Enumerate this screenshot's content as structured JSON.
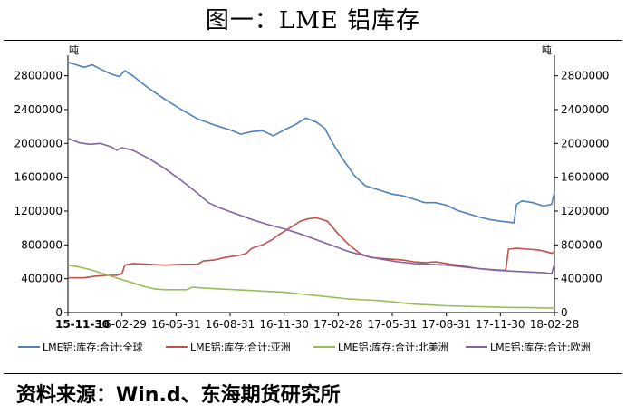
{
  "title": "图一：LME 铝库存",
  "source": "资料来源：Win.d、东海期货研究所",
  "chart_data": {
    "type": "line",
    "unit_left": "吨",
    "unit_right": "吨",
    "ylim": [
      0,
      3000000
    ],
    "y_ticks": [
      0,
      400000,
      800000,
      1200000,
      1600000,
      2000000,
      2400000,
      2800000
    ],
    "x_ticks": [
      "15-11-30",
      "16-02-29",
      "16-05-31",
      "16-08-31",
      "16-11-30",
      "17-02-28",
      "17-05-31",
      "17-08-31",
      "17-11-30",
      "18-02-28"
    ],
    "grid": false,
    "legend_position": "bottom",
    "series": [
      {
        "name": "LME铝:库存:合计:全球",
        "color": "#4f81bd",
        "points": [
          [
            0,
            2960000
          ],
          [
            0.15,
            2930000
          ],
          [
            0.3,
            2900000
          ],
          [
            0.45,
            2930000
          ],
          [
            0.6,
            2880000
          ],
          [
            0.8,
            2820000
          ],
          [
            0.95,
            2790000
          ],
          [
            1.05,
            2860000
          ],
          [
            1.2,
            2800000
          ],
          [
            1.5,
            2650000
          ],
          [
            1.8,
            2520000
          ],
          [
            2.1,
            2400000
          ],
          [
            2.4,
            2290000
          ],
          [
            2.7,
            2220000
          ],
          [
            3.0,
            2160000
          ],
          [
            3.2,
            2110000
          ],
          [
            3.4,
            2140000
          ],
          [
            3.6,
            2150000
          ],
          [
            3.8,
            2090000
          ],
          [
            4.0,
            2160000
          ],
          [
            4.2,
            2220000
          ],
          [
            4.4,
            2300000
          ],
          [
            4.6,
            2250000
          ],
          [
            4.75,
            2180000
          ],
          [
            4.9,
            2000000
          ],
          [
            5.1,
            1800000
          ],
          [
            5.3,
            1620000
          ],
          [
            5.5,
            1500000
          ],
          [
            5.8,
            1440000
          ],
          [
            6.0,
            1400000
          ],
          [
            6.2,
            1380000
          ],
          [
            6.4,
            1340000
          ],
          [
            6.6,
            1300000
          ],
          [
            6.8,
            1300000
          ],
          [
            7.0,
            1270000
          ],
          [
            7.2,
            1210000
          ],
          [
            7.4,
            1170000
          ],
          [
            7.6,
            1130000
          ],
          [
            7.8,
            1100000
          ],
          [
            8.0,
            1080000
          ],
          [
            8.15,
            1070000
          ],
          [
            8.25,
            1060000
          ],
          [
            8.3,
            1280000
          ],
          [
            8.4,
            1320000
          ],
          [
            8.6,
            1300000
          ],
          [
            8.8,
            1260000
          ],
          [
            8.95,
            1280000
          ],
          [
            9.0,
            1430000
          ]
        ]
      },
      {
        "name": "LME铝:库存:合计:亚洲",
        "color": "#c0504d",
        "points": [
          [
            0,
            410000
          ],
          [
            0.3,
            410000
          ],
          [
            0.5,
            430000
          ],
          [
            0.7,
            440000
          ],
          [
            0.9,
            440000
          ],
          [
            1.0,
            460000
          ],
          [
            1.05,
            560000
          ],
          [
            1.2,
            580000
          ],
          [
            1.5,
            570000
          ],
          [
            1.8,
            560000
          ],
          [
            2.1,
            570000
          ],
          [
            2.4,
            570000
          ],
          [
            2.5,
            610000
          ],
          [
            2.7,
            620000
          ],
          [
            2.9,
            650000
          ],
          [
            3.0,
            660000
          ],
          [
            3.2,
            680000
          ],
          [
            3.3,
            700000
          ],
          [
            3.4,
            760000
          ],
          [
            3.6,
            800000
          ],
          [
            3.8,
            870000
          ],
          [
            3.9,
            920000
          ],
          [
            4.0,
            960000
          ],
          [
            4.1,
            1000000
          ],
          [
            4.3,
            1080000
          ],
          [
            4.45,
            1110000
          ],
          [
            4.6,
            1120000
          ],
          [
            4.8,
            1080000
          ],
          [
            5.0,
            930000
          ],
          [
            5.2,
            800000
          ],
          [
            5.4,
            700000
          ],
          [
            5.6,
            650000
          ],
          [
            5.8,
            640000
          ],
          [
            6.0,
            630000
          ],
          [
            6.2,
            620000
          ],
          [
            6.4,
            600000
          ],
          [
            6.6,
            590000
          ],
          [
            6.8,
            600000
          ],
          [
            7.0,
            580000
          ],
          [
            7.2,
            560000
          ],
          [
            7.4,
            540000
          ],
          [
            7.6,
            520000
          ],
          [
            7.8,
            510000
          ],
          [
            8.0,
            500000
          ],
          [
            8.1,
            500000
          ],
          [
            8.15,
            750000
          ],
          [
            8.3,
            760000
          ],
          [
            8.5,
            750000
          ],
          [
            8.7,
            740000
          ],
          [
            8.85,
            720000
          ],
          [
            8.95,
            700000
          ],
          [
            9.0,
            720000
          ]
        ]
      },
      {
        "name": "LME铝:库存:合计:北美洲",
        "color": "#9bbb59",
        "points": [
          [
            0,
            560000
          ],
          [
            0.2,
            540000
          ],
          [
            0.4,
            510000
          ],
          [
            0.6,
            470000
          ],
          [
            0.8,
            430000
          ],
          [
            1.0,
            390000
          ],
          [
            1.2,
            350000
          ],
          [
            1.4,
            310000
          ],
          [
            1.6,
            280000
          ],
          [
            1.8,
            270000
          ],
          [
            2.0,
            270000
          ],
          [
            2.2,
            270000
          ],
          [
            2.3,
            300000
          ],
          [
            2.5,
            290000
          ],
          [
            2.8,
            280000
          ],
          [
            3.1,
            270000
          ],
          [
            3.4,
            260000
          ],
          [
            3.7,
            250000
          ],
          [
            4.0,
            240000
          ],
          [
            4.3,
            220000
          ],
          [
            4.6,
            200000
          ],
          [
            4.9,
            180000
          ],
          [
            5.2,
            160000
          ],
          [
            5.5,
            150000
          ],
          [
            5.8,
            140000
          ],
          [
            6.1,
            120000
          ],
          [
            6.4,
            100000
          ],
          [
            6.7,
            90000
          ],
          [
            7.0,
            80000
          ],
          [
            7.3,
            75000
          ],
          [
            7.6,
            70000
          ],
          [
            7.9,
            65000
          ],
          [
            8.2,
            60000
          ],
          [
            8.5,
            60000
          ],
          [
            8.8,
            55000
          ],
          [
            9.0,
            55000
          ]
        ]
      },
      {
        "name": "LME铝:库存:合计:欧洲",
        "color": "#8064a2",
        "points": [
          [
            0,
            2060000
          ],
          [
            0.2,
            2010000
          ],
          [
            0.4,
            1990000
          ],
          [
            0.6,
            2000000
          ],
          [
            0.8,
            1960000
          ],
          [
            0.9,
            1920000
          ],
          [
            1.0,
            1950000
          ],
          [
            1.2,
            1920000
          ],
          [
            1.5,
            1820000
          ],
          [
            1.8,
            1700000
          ],
          [
            2.1,
            1560000
          ],
          [
            2.4,
            1410000
          ],
          [
            2.6,
            1300000
          ],
          [
            2.8,
            1240000
          ],
          [
            3.1,
            1170000
          ],
          [
            3.4,
            1100000
          ],
          [
            3.7,
            1040000
          ],
          [
            4.0,
            990000
          ],
          [
            4.3,
            930000
          ],
          [
            4.6,
            860000
          ],
          [
            4.9,
            790000
          ],
          [
            5.2,
            720000
          ],
          [
            5.5,
            670000
          ],
          [
            5.8,
            630000
          ],
          [
            6.1,
            600000
          ],
          [
            6.4,
            580000
          ],
          [
            6.7,
            570000
          ],
          [
            7.0,
            560000
          ],
          [
            7.3,
            540000
          ],
          [
            7.6,
            520000
          ],
          [
            7.9,
            500000
          ],
          [
            8.2,
            490000
          ],
          [
            8.5,
            480000
          ],
          [
            8.8,
            470000
          ],
          [
            8.95,
            460000
          ],
          [
            9.0,
            580000
          ]
        ]
      }
    ]
  }
}
